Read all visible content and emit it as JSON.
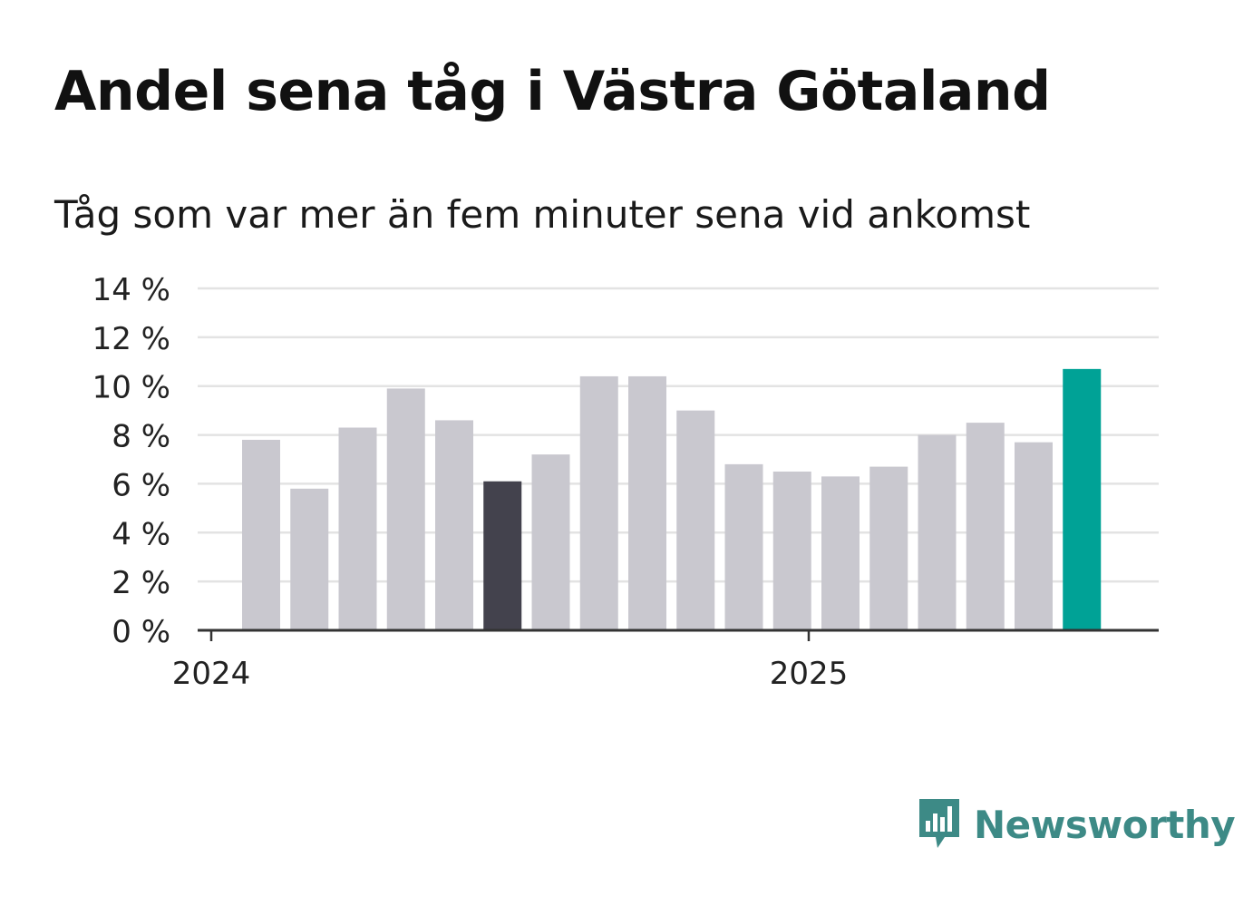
{
  "chart_data": {
    "type": "bar",
    "title": "Andel sena tåg i Västra Götaland",
    "subtitle": "Tåg som var mer än fem minuter sena vid ankomst",
    "ylim": [
      0,
      14
    ],
    "yticks": [
      0,
      2,
      4,
      6,
      8,
      10,
      12,
      14
    ],
    "ytick_labels": [
      "0 %",
      "2 %",
      "4 %",
      "6 %",
      "8 %",
      "10 %",
      "12 %",
      "14 %"
    ],
    "x_labels": [
      {
        "label": "2024",
        "position": 0
      },
      {
        "label": "2025",
        "position": 12
      }
    ],
    "grid": true,
    "legend": "none",
    "values": [
      7.8,
      5.8,
      8.3,
      9.9,
      8.6,
      6.1,
      7.2,
      10.4,
      10.4,
      9.0,
      6.8,
      6.5,
      6.3,
      6.7,
      8.0,
      8.5,
      7.7,
      10.7
    ],
    "highlight": {
      "5": "dark",
      "17": "accent"
    },
    "colors": {
      "bar": "#c9c8cf",
      "dark": "#43424d",
      "accent": "#00a296",
      "grid": "#e3e3e3",
      "axis": "#333333"
    }
  },
  "logo": {
    "text": "Newsworthy",
    "icon": "newsworthy-bar-chart-icon",
    "color": "#3d8a86"
  }
}
